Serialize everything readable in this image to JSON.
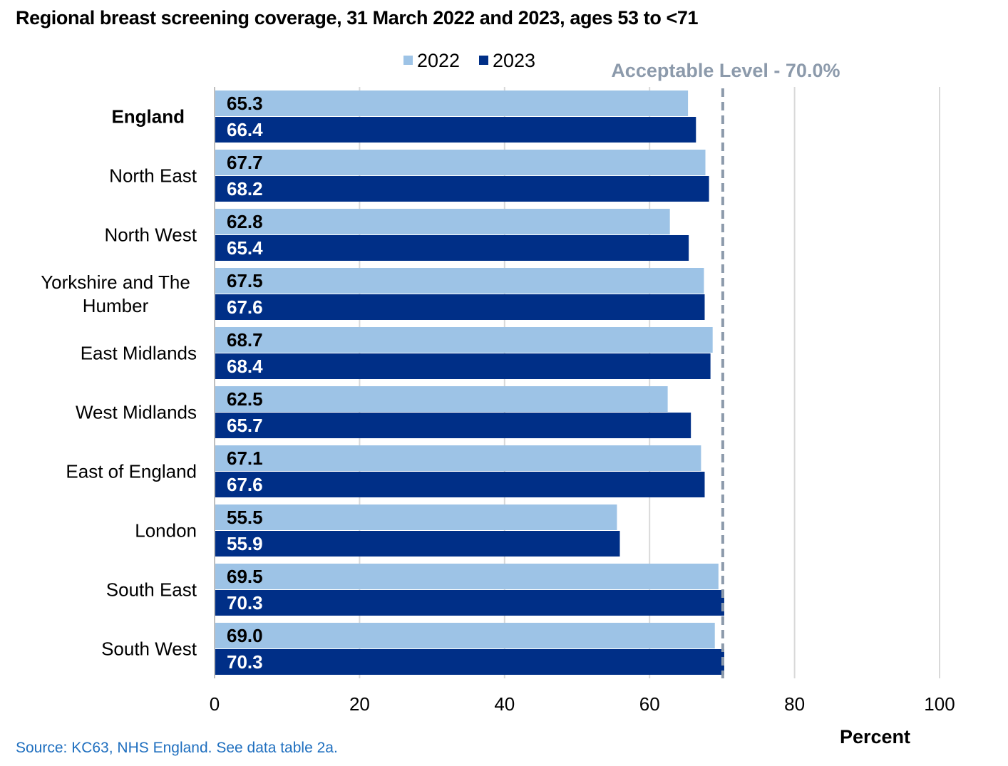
{
  "chart_data": {
    "type": "bar",
    "orientation": "horizontal",
    "title": "Regional breast screening coverage, 31 March 2022 and 2023, ages 53 to <71",
    "categories": [
      "England",
      "North East",
      "North West",
      "Yorkshire and The Humber",
      "East Midlands",
      "West Midlands",
      "East of England",
      "London",
      "South East",
      "South West"
    ],
    "category_lines": [
      [
        "England"
      ],
      [
        "North East"
      ],
      [
        "North West"
      ],
      [
        "Yorkshire and The",
        "Humber"
      ],
      [
        "East Midlands"
      ],
      [
        "West Midlands"
      ],
      [
        "East of England"
      ],
      [
        "London"
      ],
      [
        "South East"
      ],
      [
        "South West"
      ]
    ],
    "bold_categories": [
      "England"
    ],
    "series": [
      {
        "name": "2022",
        "color": "#9dc3e6",
        "label_color": "#000000",
        "values": [
          65.3,
          67.7,
          62.8,
          67.5,
          68.7,
          62.5,
          67.1,
          55.5,
          69.5,
          69.0
        ]
      },
      {
        "name": "2023",
        "color": "#002f87",
        "label_color": "#ffffff",
        "values": [
          66.4,
          68.2,
          65.4,
          67.6,
          68.4,
          65.7,
          67.6,
          55.9,
          70.3,
          70.3
        ]
      }
    ],
    "data_labels": [
      [
        "65.3",
        "67.7",
        "62.8",
        "67.5",
        "68.7",
        "62.5",
        "67.1",
        "55.5",
        "69.5",
        "69.0"
      ],
      [
        "66.4",
        "68.2",
        "65.4",
        "67.6",
        "68.4",
        "65.7",
        "67.6",
        "55.9",
        "70.3",
        "70.3"
      ]
    ],
    "xlim": [
      0,
      100
    ],
    "x_ticks": [
      0,
      20,
      40,
      60,
      80,
      100
    ],
    "xlabel": "Percent",
    "ylabel": "",
    "grid": true,
    "legend_position": "top",
    "reference_line": {
      "value": 70.0,
      "label": "Acceptable Level - 70.0%",
      "color": "#8c9aab",
      "style": "dashed"
    }
  },
  "source": {
    "text": "Source: KC63, NHS England. See data table 2a.",
    "color": "#1f6fbf"
  }
}
